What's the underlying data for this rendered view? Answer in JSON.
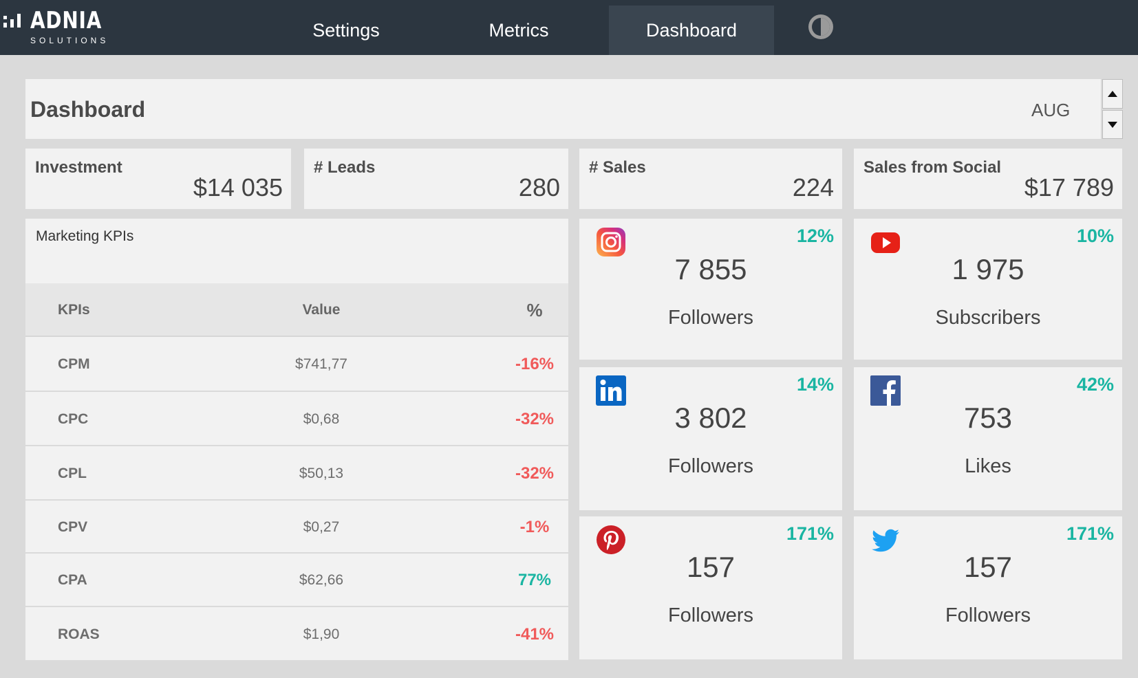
{
  "brand": {
    "name": "ADNIA",
    "tagline": "SOLUTIONS"
  },
  "nav": {
    "settings": "Settings",
    "metrics": "Metrics",
    "dashboard": "Dashboard",
    "theme_icon": "contrast-icon"
  },
  "header": {
    "title": "Dashboard",
    "month": "AUG"
  },
  "kpis": [
    {
      "label": "Investment",
      "value": "$14 035"
    },
    {
      "label": "# Leads",
      "value": "280"
    },
    {
      "label": "# Sales",
      "value": "224"
    },
    {
      "label": "Sales from Social",
      "value": "$17 789"
    }
  ],
  "marketing": {
    "title": "Marketing KPIs",
    "columns": [
      "KPIs",
      "Value",
      "%"
    ],
    "rows": [
      {
        "kpi": "CPM",
        "value": "$741,77",
        "pct": "-16%",
        "trend": "neg"
      },
      {
        "kpi": "CPC",
        "value": "$0,68",
        "pct": "-32%",
        "trend": "neg"
      },
      {
        "kpi": "CPL",
        "value": "$50,13",
        "pct": "-32%",
        "trend": "neg"
      },
      {
        "kpi": "CPV",
        "value": "$0,27",
        "pct": "-1%",
        "trend": "neg"
      },
      {
        "kpi": "CPA",
        "value": "$62,66",
        "pct": "77%",
        "trend": "pos"
      },
      {
        "kpi": "ROAS",
        "value": "$1,90",
        "pct": "-41%",
        "trend": "neg"
      }
    ]
  },
  "social": {
    "instagram": {
      "icon": "instagram-icon",
      "pct": "12%",
      "count": "7 855",
      "label": "Followers"
    },
    "youtube": {
      "icon": "youtube-icon",
      "pct": "10%",
      "count": "1 975",
      "label": "Subscribers"
    },
    "linkedin": {
      "icon": "linkedin-icon",
      "pct": "14%",
      "count": "3 802",
      "label": "Followers"
    },
    "facebook": {
      "icon": "facebook-icon",
      "pct": "42%",
      "count": "753",
      "label": "Likes"
    },
    "pinterest": {
      "icon": "pinterest-icon",
      "pct": "171%",
      "count": "157",
      "label": "Followers"
    },
    "twitter": {
      "icon": "twitter-icon",
      "pct": "171%",
      "count": "157",
      "label": "Followers"
    }
  },
  "colors": {
    "topbar": "#2c3640",
    "active_tab": "#3a4550",
    "positive": "#1ab5a2",
    "negative": "#f05a5a",
    "panel": "#f2f2f2",
    "background": "#dadada"
  }
}
